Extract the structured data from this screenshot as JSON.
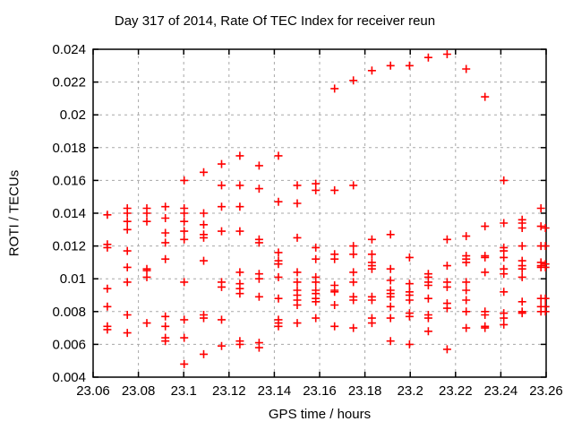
{
  "chart_data": {
    "type": "scatter",
    "title": "Day 317 of 2014, Rate Of TEC Index for receiver reun",
    "xlabel": "GPS time / hours",
    "ylabel": "ROTI / TECUs",
    "xlim": [
      23.06,
      23.26
    ],
    "ylim": [
      0.004,
      0.024
    ],
    "grid": true,
    "legend": "none",
    "marker_symbol": "plus",
    "marker_color": "#ff0000",
    "grid_color": "#a8a8a8",
    "border_color": "#000000",
    "background_color": "#ffffff",
    "xticks": [
      {
        "v": 23.06,
        "label": "23.06"
      },
      {
        "v": 23.08,
        "label": "23.08"
      },
      {
        "v": 23.1,
        "label": "23.1"
      },
      {
        "v": 23.12,
        "label": "23.12"
      },
      {
        "v": 23.14,
        "label": "23.14"
      },
      {
        "v": 23.16,
        "label": "23.16"
      },
      {
        "v": 23.18,
        "label": "23.18"
      },
      {
        "v": 23.2,
        "label": "23.2"
      },
      {
        "v": 23.22,
        "label": "23.22"
      },
      {
        "v": 23.24,
        "label": "23.24"
      },
      {
        "v": 23.26,
        "label": "23.26"
      }
    ],
    "yticks": [
      {
        "v": 0.004,
        "label": "0.004"
      },
      {
        "v": 0.006,
        "label": "0.006"
      },
      {
        "v": 0.008,
        "label": "0.008"
      },
      {
        "v": 0.01,
        "label": "0.01"
      },
      {
        "v": 0.012,
        "label": "0.012"
      },
      {
        "v": 0.014,
        "label": "0.014"
      },
      {
        "v": 0.016,
        "label": "0.016"
      },
      {
        "v": 0.018,
        "label": "0.018"
      },
      {
        "v": 0.02,
        "label": "0.02"
      },
      {
        "v": 0.022,
        "label": "0.022"
      },
      {
        "v": 0.024,
        "label": "0.024"
      }
    ],
    "series": [
      {
        "name": "ROTI",
        "points": [
          [
            23.0663,
            0.0139
          ],
          [
            23.0663,
            0.0121
          ],
          [
            23.0663,
            0.0119
          ],
          [
            23.0663,
            0.0094
          ],
          [
            23.0663,
            0.0083
          ],
          [
            23.0663,
            0.0071
          ],
          [
            23.0663,
            0.0069
          ],
          [
            23.0751,
            0.0143
          ],
          [
            23.0751,
            0.014
          ],
          [
            23.0751,
            0.0135
          ],
          [
            23.0751,
            0.013
          ],
          [
            23.0751,
            0.0117
          ],
          [
            23.0751,
            0.0107
          ],
          [
            23.0751,
            0.0098
          ],
          [
            23.0751,
            0.0078
          ],
          [
            23.0751,
            0.0067
          ],
          [
            23.0837,
            0.0143
          ],
          [
            23.0837,
            0.014
          ],
          [
            23.0837,
            0.0135
          ],
          [
            23.0837,
            0.0106
          ],
          [
            23.0837,
            0.0105
          ],
          [
            23.0837,
            0.0101
          ],
          [
            23.0837,
            0.0073
          ],
          [
            23.0919,
            0.0144
          ],
          [
            23.0919,
            0.0137
          ],
          [
            23.0919,
            0.0128
          ],
          [
            23.0919,
            0.0122
          ],
          [
            23.0919,
            0.0112
          ],
          [
            23.0919,
            0.0077
          ],
          [
            23.0919,
            0.0071
          ],
          [
            23.0919,
            0.0064
          ],
          [
            23.0919,
            0.0062
          ],
          [
            23.1002,
            0.016
          ],
          [
            23.1002,
            0.0143
          ],
          [
            23.1002,
            0.014
          ],
          [
            23.1002,
            0.0135
          ],
          [
            23.1002,
            0.0129
          ],
          [
            23.1002,
            0.0124
          ],
          [
            23.1002,
            0.0098
          ],
          [
            23.1002,
            0.0075
          ],
          [
            23.1002,
            0.0064
          ],
          [
            23.1002,
            0.0048
          ],
          [
            23.1088,
            0.0165
          ],
          [
            23.1088,
            0.014
          ],
          [
            23.1088,
            0.0133
          ],
          [
            23.1088,
            0.0127
          ],
          [
            23.1088,
            0.0125
          ],
          [
            23.1088,
            0.0111
          ],
          [
            23.1088,
            0.0078
          ],
          [
            23.1088,
            0.0076
          ],
          [
            23.1088,
            0.0054
          ],
          [
            23.1167,
            0.017
          ],
          [
            23.1167,
            0.0157
          ],
          [
            23.1167,
            0.0144
          ],
          [
            23.1167,
            0.0129
          ],
          [
            23.1167,
            0.0098
          ],
          [
            23.1167,
            0.0095
          ],
          [
            23.1167,
            0.0075
          ],
          [
            23.1167,
            0.0059
          ],
          [
            23.1248,
            0.0175
          ],
          [
            23.1248,
            0.0157
          ],
          [
            23.1248,
            0.0144
          ],
          [
            23.1248,
            0.0129
          ],
          [
            23.1248,
            0.0104
          ],
          [
            23.1248,
            0.0097
          ],
          [
            23.1248,
            0.0094
          ],
          [
            23.1248,
            0.0091
          ],
          [
            23.1248,
            0.0062
          ],
          [
            23.1248,
            0.006
          ],
          [
            23.1333,
            0.0169
          ],
          [
            23.1333,
            0.0155
          ],
          [
            23.1333,
            0.0124
          ],
          [
            23.1333,
            0.0122
          ],
          [
            23.1333,
            0.0103
          ],
          [
            23.1333,
            0.01
          ],
          [
            23.1333,
            0.0089
          ],
          [
            23.1333,
            0.0061
          ],
          [
            23.1333,
            0.0058
          ],
          [
            23.1418,
            0.0175
          ],
          [
            23.1418,
            0.0147
          ],
          [
            23.1418,
            0.0116
          ],
          [
            23.1418,
            0.0111
          ],
          [
            23.1418,
            0.0109
          ],
          [
            23.1418,
            0.0101
          ],
          [
            23.1418,
            0.0088
          ],
          [
            23.1418,
            0.0075
          ],
          [
            23.1418,
            0.0073
          ],
          [
            23.1418,
            0.0071
          ],
          [
            23.1501,
            0.0157
          ],
          [
            23.1501,
            0.0146
          ],
          [
            23.1501,
            0.0125
          ],
          [
            23.1501,
            0.0104
          ],
          [
            23.1501,
            0.0098
          ],
          [
            23.1501,
            0.0093
          ],
          [
            23.1501,
            0.009
          ],
          [
            23.1501,
            0.0087
          ],
          [
            23.1501,
            0.0084
          ],
          [
            23.1501,
            0.0073
          ],
          [
            23.1583,
            0.0158
          ],
          [
            23.1583,
            0.0154
          ],
          [
            23.1583,
            0.0119
          ],
          [
            23.1583,
            0.0112
          ],
          [
            23.1583,
            0.0101
          ],
          [
            23.1583,
            0.0098
          ],
          [
            23.1583,
            0.0093
          ],
          [
            23.1583,
            0.0091
          ],
          [
            23.1583,
            0.0088
          ],
          [
            23.1583,
            0.0086
          ],
          [
            23.1583,
            0.0076
          ],
          [
            23.1666,
            0.0216
          ],
          [
            23.1666,
            0.0154
          ],
          [
            23.1666,
            0.0115
          ],
          [
            23.1666,
            0.0112
          ],
          [
            23.1666,
            0.0096
          ],
          [
            23.1666,
            0.0093
          ],
          [
            23.1666,
            0.0092
          ],
          [
            23.1666,
            0.0084
          ],
          [
            23.1666,
            0.0071
          ],
          [
            23.1749,
            0.0221
          ],
          [
            23.1749,
            0.0157
          ],
          [
            23.1749,
            0.012
          ],
          [
            23.1749,
            0.0115
          ],
          [
            23.1749,
            0.0104
          ],
          [
            23.1749,
            0.0098
          ],
          [
            23.1749,
            0.0089
          ],
          [
            23.1749,
            0.0087
          ],
          [
            23.1749,
            0.007
          ],
          [
            23.1831,
            0.0227
          ],
          [
            23.1831,
            0.0124
          ],
          [
            23.1831,
            0.0115
          ],
          [
            23.1831,
            0.011
          ],
          [
            23.1831,
            0.0108
          ],
          [
            23.1831,
            0.0106
          ],
          [
            23.1831,
            0.0089
          ],
          [
            23.1831,
            0.0087
          ],
          [
            23.1831,
            0.0076
          ],
          [
            23.1831,
            0.0073
          ],
          [
            23.1913,
            0.023
          ],
          [
            23.1913,
            0.0127
          ],
          [
            23.1913,
            0.0106
          ],
          [
            23.1913,
            0.0099
          ],
          [
            23.1913,
            0.0093
          ],
          [
            23.1913,
            0.0091
          ],
          [
            23.1913,
            0.0089
          ],
          [
            23.1913,
            0.0083
          ],
          [
            23.1913,
            0.0076
          ],
          [
            23.1913,
            0.0062
          ],
          [
            23.1997,
            0.023
          ],
          [
            23.1997,
            0.0113
          ],
          [
            23.1997,
            0.0097
          ],
          [
            23.1997,
            0.0092
          ],
          [
            23.1997,
            0.009
          ],
          [
            23.1997,
            0.0087
          ],
          [
            23.1997,
            0.0079
          ],
          [
            23.1997,
            0.0077
          ],
          [
            23.1997,
            0.006
          ],
          [
            23.208,
            0.0235
          ],
          [
            23.208,
            0.0103
          ],
          [
            23.208,
            0.0101
          ],
          [
            23.208,
            0.0098
          ],
          [
            23.208,
            0.0096
          ],
          [
            23.208,
            0.0088
          ],
          [
            23.208,
            0.0078
          ],
          [
            23.208,
            0.0076
          ],
          [
            23.208,
            0.0068
          ],
          [
            23.2163,
            0.0237
          ],
          [
            23.2163,
            0.0124
          ],
          [
            23.2163,
            0.0108
          ],
          [
            23.2163,
            0.0098
          ],
          [
            23.2163,
            0.0095
          ],
          [
            23.2163,
            0.0085
          ],
          [
            23.2163,
            0.0082
          ],
          [
            23.2163,
            0.0057
          ],
          [
            23.2247,
            0.0228
          ],
          [
            23.2247,
            0.0126
          ],
          [
            23.2247,
            0.0114
          ],
          [
            23.2247,
            0.0112
          ],
          [
            23.2247,
            0.011
          ],
          [
            23.2247,
            0.0098
          ],
          [
            23.2247,
            0.0093
          ],
          [
            23.2247,
            0.0087
          ],
          [
            23.2247,
            0.008
          ],
          [
            23.2247,
            0.007
          ],
          [
            23.233,
            0.0211
          ],
          [
            23.233,
            0.0132
          ],
          [
            23.233,
            0.0114
          ],
          [
            23.233,
            0.0113
          ],
          [
            23.233,
            0.0104
          ],
          [
            23.233,
            0.008
          ],
          [
            23.233,
            0.0078
          ],
          [
            23.233,
            0.0071
          ],
          [
            23.233,
            0.007
          ],
          [
            23.2413,
            0.016
          ],
          [
            23.2413,
            0.0134
          ],
          [
            23.2413,
            0.0119
          ],
          [
            23.2413,
            0.0117
          ],
          [
            23.2413,
            0.0113
          ],
          [
            23.2413,
            0.0106
          ],
          [
            23.2413,
            0.0103
          ],
          [
            23.2413,
            0.0092
          ],
          [
            23.2413,
            0.0079
          ],
          [
            23.2413,
            0.0076
          ],
          [
            23.2413,
            0.0072
          ],
          [
            23.2494,
            0.0136
          ],
          [
            23.2494,
            0.0134
          ],
          [
            23.2494,
            0.0131
          ],
          [
            23.2494,
            0.012
          ],
          [
            23.2494,
            0.0111
          ],
          [
            23.2494,
            0.0108
          ],
          [
            23.2494,
            0.0106
          ],
          [
            23.2494,
            0.0101
          ],
          [
            23.2494,
            0.0086
          ],
          [
            23.2494,
            0.008
          ],
          [
            23.2494,
            0.0079
          ],
          [
            23.2577,
            0.0143
          ],
          [
            23.2577,
            0.0132
          ],
          [
            23.2577,
            0.012
          ],
          [
            23.2577,
            0.011
          ],
          [
            23.2577,
            0.0108
          ],
          [
            23.2577,
            0.0107
          ],
          [
            23.2577,
            0.0088
          ],
          [
            23.2577,
            0.0083
          ],
          [
            23.2577,
            0.008
          ],
          [
            23.2597,
            0.0131
          ],
          [
            23.2597,
            0.012
          ],
          [
            23.2597,
            0.0109
          ],
          [
            23.2597,
            0.0107
          ],
          [
            23.2597,
            0.0088
          ],
          [
            23.2597,
            0.0083
          ],
          [
            23.2597,
            0.008
          ]
        ]
      }
    ]
  }
}
